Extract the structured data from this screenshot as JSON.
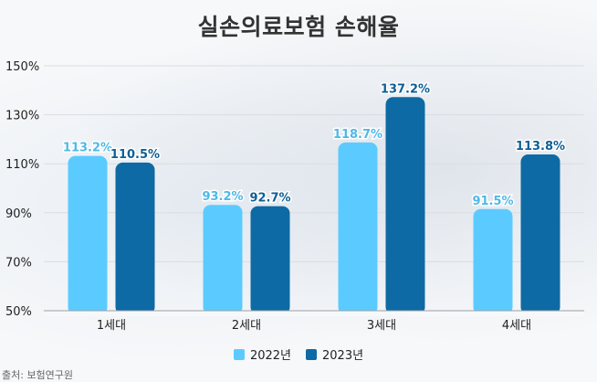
{
  "chart_data": {
    "type": "bar",
    "title": "실손의료보험 손해율",
    "categories": [
      "1세대",
      "2세대",
      "3세대",
      "4세대"
    ],
    "series": [
      {
        "name": "2022년",
        "values": [
          113.2,
          93.2,
          118.7,
          91.5
        ],
        "labels": [
          "113.2%",
          "93.2%",
          "118.7%",
          "91.5%"
        ],
        "color": "#5bcbff",
        "label_color": "#4fb8e8"
      },
      {
        "name": "2023년",
        "values": [
          110.5,
          92.7,
          137.2,
          113.8
        ],
        "labels": [
          "110.5%",
          "92.7%",
          "137.2%",
          "113.8%"
        ],
        "color": "#0d6aa4",
        "label_color": "#0d5f95"
      }
    ],
    "ylim": [
      50,
      150
    ],
    "yticks": [
      50,
      70,
      90,
      110,
      130,
      150
    ],
    "ytick_labels": [
      "50%",
      "70%",
      "90%",
      "110%",
      "130%",
      "150%"
    ],
    "grid": true,
    "legend": "bottom",
    "xlabel": "",
    "ylabel": ""
  },
  "source_text": "출처: 보험연구원"
}
